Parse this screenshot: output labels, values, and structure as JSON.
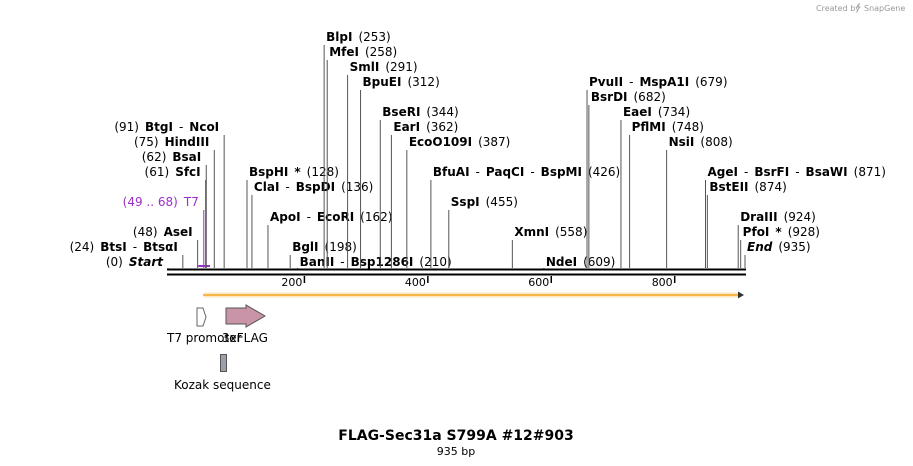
{
  "credit": {
    "prefix": "Created by",
    "brand": "SnapGene"
  },
  "title": "FLAG-Sec31a S799A #12#903",
  "subtitle": "935 bp",
  "sequence_length": 935,
  "ruler_ticks": [
    "200",
    "400",
    "600",
    "800"
  ],
  "sites": [
    {
      "id": "bsti",
      "pos": 24,
      "row": 15,
      "parts": [
        {
          "t": "(24)"
        },
        {
          "t": "BtsI",
          "b": 1
        },
        {
          "t": "-"
        },
        {
          "t": "BtsαI",
          "b": 1
        }
      ]
    },
    {
      "id": "start",
      "pos": 0,
      "row": 16,
      "parts": [
        {
          "t": "(0)"
        },
        {
          "t": "Start",
          "b": 1,
          "i": 1
        }
      ]
    },
    {
      "id": "asei",
      "pos": 48,
      "row": 14,
      "parts": [
        {
          "t": "(48)"
        },
        {
          "t": "AseI",
          "b": 1
        }
      ]
    },
    {
      "id": "t7site",
      "pos": 58,
      "row": 12,
      "color": "#9b30c8",
      "parts": [
        {
          "t": "(49 .. 68)"
        },
        {
          "t": "T7"
        }
      ]
    },
    {
      "id": "sfci",
      "pos": 61,
      "row": 10,
      "parts": [
        {
          "t": "(61)"
        },
        {
          "t": "SfcI",
          "b": 1
        }
      ]
    },
    {
      "id": "bsai",
      "pos": 62,
      "row": 9,
      "parts": [
        {
          "t": "(62)"
        },
        {
          "t": "BsaI",
          "b": 1
        }
      ]
    },
    {
      "id": "hindiii",
      "pos": 75,
      "row": 8,
      "parts": [
        {
          "t": "(75)"
        },
        {
          "t": "HindIII",
          "b": 1
        }
      ]
    },
    {
      "id": "btgi",
      "pos": 91,
      "row": 7,
      "parts": [
        {
          "t": "(91)"
        },
        {
          "t": "BtgI",
          "b": 1
        },
        {
          "t": "-"
        },
        {
          "t": "NcoI",
          "b": 1
        }
      ]
    },
    {
      "id": "bsphi",
      "pos": 128,
      "row": 10,
      "parts": [
        {
          "t": "BspHI",
          "b": 1
        },
        {
          "t": "*",
          "b": 1
        },
        {
          "t": "(128)"
        }
      ]
    },
    {
      "id": "clai",
      "pos": 136,
      "row": 11,
      "parts": [
        {
          "t": "ClaI",
          "b": 1
        },
        {
          "t": "-"
        },
        {
          "t": "BspDI",
          "b": 1
        },
        {
          "t": "(136)"
        }
      ]
    },
    {
      "id": "apoi",
      "pos": 162,
      "row": 13,
      "parts": [
        {
          "t": "ApoI",
          "b": 1
        },
        {
          "t": "-"
        },
        {
          "t": "EcoRI",
          "b": 1
        },
        {
          "t": "(162)"
        }
      ]
    },
    {
      "id": "bgli",
      "pos": 198,
      "row": 15,
      "parts": [
        {
          "t": "BglI",
          "b": 1
        },
        {
          "t": "(198)"
        }
      ]
    },
    {
      "id": "banii",
      "pos": 210,
      "row": 16,
      "parts": [
        {
          "t": "BanII",
          "b": 1
        },
        {
          "t": "-"
        },
        {
          "t": "Bsp1286I",
          "b": 1
        },
        {
          "t": "(210)"
        }
      ]
    },
    {
      "id": "blpi",
      "pos": 253,
      "row": 1,
      "parts": [
        {
          "t": "BlpI",
          "b": 1
        },
        {
          "t": "(253)"
        }
      ]
    },
    {
      "id": "mfei",
      "pos": 258,
      "row": 2,
      "parts": [
        {
          "t": "MfeI",
          "b": 1
        },
        {
          "t": "(258)"
        }
      ]
    },
    {
      "id": "smli",
      "pos": 291,
      "row": 3,
      "parts": [
        {
          "t": "SmlI",
          "b": 1
        },
        {
          "t": "(291)"
        }
      ]
    },
    {
      "id": "bpuei",
      "pos": 312,
      "row": 4,
      "parts": [
        {
          "t": "BpuEI",
          "b": 1
        },
        {
          "t": "(312)"
        }
      ]
    },
    {
      "id": "bseri",
      "pos": 344,
      "row": 6,
      "parts": [
        {
          "t": "BseRI",
          "b": 1
        },
        {
          "t": "(344)"
        }
      ]
    },
    {
      "id": "eari",
      "pos": 362,
      "row": 7,
      "parts": [
        {
          "t": "EarI",
          "b": 1
        },
        {
          "t": "(362)"
        }
      ]
    },
    {
      "id": "ecoo109i",
      "pos": 387,
      "row": 8,
      "parts": [
        {
          "t": "EcoO109I",
          "b": 1
        },
        {
          "t": "(387)"
        }
      ]
    },
    {
      "id": "bfuai",
      "pos": 426,
      "row": 10,
      "parts": [
        {
          "t": "BfuAI",
          "b": 1
        },
        {
          "t": "-"
        },
        {
          "t": "PaqCI",
          "b": 1
        },
        {
          "t": "-"
        },
        {
          "t": "BspMI",
          "b": 1
        },
        {
          "t": "(426)"
        }
      ]
    },
    {
      "id": "sspi",
      "pos": 455,
      "row": 12,
      "parts": [
        {
          "t": "SspI",
          "b": 1
        },
        {
          "t": "(455)"
        }
      ]
    },
    {
      "id": "xmni",
      "pos": 558,
      "row": 14,
      "parts": [
        {
          "t": "XmnI",
          "b": 1
        },
        {
          "t": "(558)"
        }
      ]
    },
    {
      "id": "ndei",
      "pos": 609,
      "row": 16,
      "parts": [
        {
          "t": "NdeI",
          "b": 1
        },
        {
          "t": "(609)"
        }
      ]
    },
    {
      "id": "pvuii",
      "pos": 679,
      "row": 4,
      "parts": [
        {
          "t": "PvuII",
          "b": 1
        },
        {
          "t": "-"
        },
        {
          "t": "MspA1I",
          "b": 1
        },
        {
          "t": "(679)"
        }
      ]
    },
    {
      "id": "bsrdi",
      "pos": 682,
      "row": 5,
      "parts": [
        {
          "t": "BsrDI",
          "b": 1
        },
        {
          "t": "(682)"
        }
      ]
    },
    {
      "id": "eaei",
      "pos": 734,
      "row": 6,
      "parts": [
        {
          "t": "EaeI",
          "b": 1
        },
        {
          "t": "(734)"
        }
      ]
    },
    {
      "id": "pflmi",
      "pos": 748,
      "row": 7,
      "parts": [
        {
          "t": "PflMI",
          "b": 1
        },
        {
          "t": "(748)"
        }
      ]
    },
    {
      "id": "nsii",
      "pos": 808,
      "row": 8,
      "parts": [
        {
          "t": "NsiI",
          "b": 1
        },
        {
          "t": "(808)"
        }
      ]
    },
    {
      "id": "agei",
      "pos": 871,
      "row": 10,
      "parts": [
        {
          "t": "AgeI",
          "b": 1
        },
        {
          "t": "-"
        },
        {
          "t": "BsrFI",
          "b": 1
        },
        {
          "t": "-"
        },
        {
          "t": "BsaWI",
          "b": 1
        },
        {
          "t": "(871)"
        }
      ]
    },
    {
      "id": "bsteii",
      "pos": 874,
      "row": 11,
      "parts": [
        {
          "t": "BstEII",
          "b": 1
        },
        {
          "t": "(874)"
        }
      ]
    },
    {
      "id": "draiii",
      "pos": 924,
      "row": 13,
      "parts": [
        {
          "t": "DraIII",
          "b": 1
        },
        {
          "t": "(924)"
        }
      ]
    },
    {
      "id": "pfoi",
      "pos": 928,
      "row": 14,
      "parts": [
        {
          "t": "PfoI",
          "b": 1
        },
        {
          "t": "*",
          "b": 1
        },
        {
          "t": "(928)"
        }
      ]
    },
    {
      "id": "end",
      "pos": 935,
      "row": 15,
      "parts": [
        {
          "t": "End",
          "b": 1,
          "i": 1
        },
        {
          "t": "(935)"
        }
      ]
    }
  ],
  "features": [
    {
      "id": "t7-promoter",
      "label": "T7 promoter",
      "start": 49,
      "end": 68,
      "shape": "arrow",
      "color": "#ffffff"
    },
    {
      "id": "3xflag",
      "label": "3xFLAG",
      "start": 94,
      "end": 159,
      "shape": "arrow",
      "color": "#c993a8"
    },
    {
      "id": "kozak",
      "label": "Kozak sequence",
      "start": 85,
      "end": 94,
      "shape": "box",
      "color": "#9aa1ab"
    }
  ],
  "orf": {
    "start": 91,
    "end": 935,
    "color": "#f5a623"
  }
}
